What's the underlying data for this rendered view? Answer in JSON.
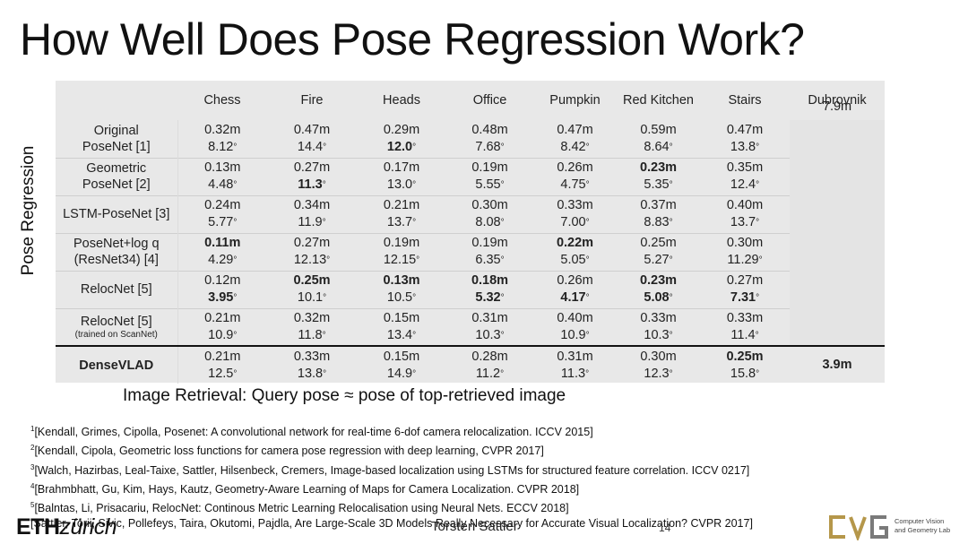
{
  "slide": {
    "title": "How Well Does Pose Regression Work?",
    "side_label": "Pose Regression",
    "retrieval_note": "Image Retrieval: Query pose ≈ pose of top-retrieved image"
  },
  "table": {
    "columns": [
      "Chess",
      "Fire",
      "Heads",
      "Office",
      "Pumpkin",
      "Red Kitchen",
      "Stairs",
      "Dubrovnik"
    ],
    "methods": [
      {
        "name_lines": [
          "Original",
          "PoseNet [1]"
        ],
        "note": "",
        "trans": [
          "0.32m",
          "0.47m",
          "0.29m",
          "0.48m",
          "0.47m",
          "0.59m",
          "0.47m"
        ],
        "rot": [
          "8.12",
          "14.4",
          "12.0",
          "7.68",
          "8.42",
          "8.64",
          "13.8"
        ]
      },
      {
        "name_lines": [
          "Geometric",
          "PoseNet [2]"
        ],
        "note": "",
        "trans": [
          "0.13m",
          "0.27m",
          "0.17m",
          "0.19m",
          "0.26m",
          "0.23m",
          "0.35m"
        ],
        "rot": [
          "4.48",
          "11.3",
          "13.0",
          "5.55",
          "4.75",
          "5.35",
          "12.4"
        ]
      },
      {
        "name_lines": [
          "LSTM-PoseNet [3]"
        ],
        "note": "",
        "trans": [
          "0.24m",
          "0.34m",
          "0.21m",
          "0.30m",
          "0.33m",
          "0.37m",
          "0.40m"
        ],
        "rot": [
          "5.77",
          "11.9",
          "13.7",
          "8.08",
          "7.00",
          "8.83",
          "13.7"
        ]
      },
      {
        "name_lines": [
          "PoseNet+log q",
          "(ResNet34) [4]"
        ],
        "note": "",
        "trans": [
          "0.11m",
          "0.27m",
          "0.19m",
          "0.19m",
          "0.22m",
          "0.25m",
          "0.30m"
        ],
        "rot": [
          "4.29",
          "12.13",
          "12.15",
          "6.35",
          "5.05",
          "5.27",
          "11.29"
        ]
      },
      {
        "name_lines": [
          "RelocNet [5]"
        ],
        "note": "",
        "trans": [
          "0.12m",
          "0.25m",
          "0.13m",
          "0.18m",
          "0.26m",
          "0.23m",
          "0.27m"
        ],
        "rot": [
          "3.95",
          "10.1",
          "10.5",
          "5.32",
          "4.17",
          "5.08",
          "7.31"
        ]
      },
      {
        "name_lines": [
          "RelocNet [5]"
        ],
        "note": "(trained on ScanNet)",
        "trans": [
          "0.21m",
          "0.32m",
          "0.15m",
          "0.31m",
          "0.40m",
          "0.33m",
          "0.33m"
        ],
        "rot": [
          "10.9",
          "11.8",
          "13.4",
          "10.3",
          "10.9",
          "10.3",
          "11.4"
        ]
      }
    ],
    "dubrovnik_regression": "7.9m",
    "densevlad": {
      "name": "DenseVLAD",
      "trans": [
        "0.21m",
        "0.33m",
        "0.15m",
        "0.28m",
        "0.31m",
        "0.30m",
        "0.25m"
      ],
      "rot": [
        "12.5",
        "13.8",
        "14.9",
        "11.2",
        "11.3",
        "12.3",
        "15.8"
      ],
      "dubrovnik": "3.9m"
    },
    "degree_symbol": "°"
  },
  "references": [
    {
      "num": "1",
      "text": "[Kendall, Grimes, Cipolla, Posenet: A convolutional network for real-time 6-dof camera relocalization. ICCV 2015]"
    },
    {
      "num": "2",
      "text": "[Kendall, Cipola, Geometric loss functions for camera pose regression with deep learning, CVPR 2017]"
    },
    {
      "num": "3",
      "text": "[Walch, Hazirbas, Leal-Taixe, Sattler, Hilsenbeck, Cremers, Image-based localization using LSTMs for structured feature correlation. ICCV 0217]"
    },
    {
      "num": "4",
      "text": "[Brahmbhatt, Gu, Kim, Hays, Kautz, Geometry-Aware Learning of Maps for Camera Localization. CVPR 2018]"
    },
    {
      "num": "5",
      "text": "[Balntas, Li, Prisacariu, RelocNet: Continous Metric Learning Relocalisation using Neural Nets. ECCV 2018]"
    },
    {
      "num": "",
      "text": "[Sattler, Torii, Sivic, Pollefeys, Taira, Okutomi, Pajdla, Are Large-Scale 3D Models Really Necessary for Accurate Visual Localization? CVPR 2017]"
    }
  ],
  "footer": {
    "eth": "ETH",
    "zurich": "zürich",
    "presenter": "Torsten Sattler",
    "page_number": "14",
    "lab_line1": "Computer Vision",
    "lab_line2": "and Geometry Lab",
    "lab_logo_letters": "CVG"
  }
}
